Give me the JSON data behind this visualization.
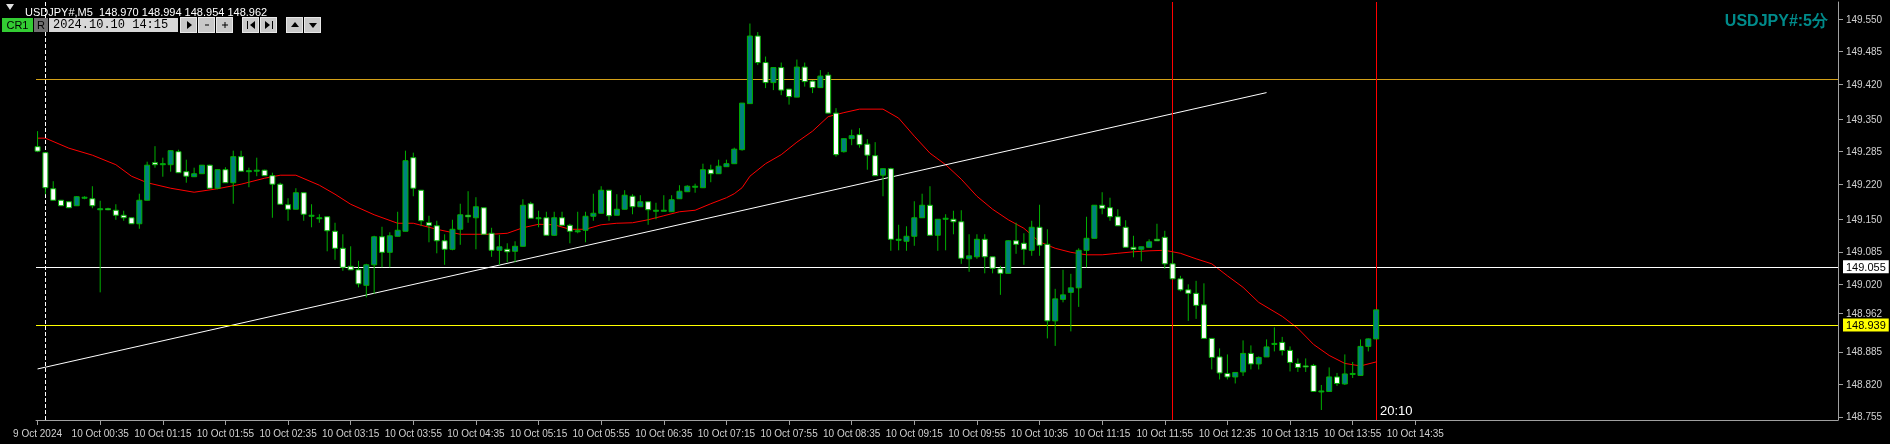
{
  "chart_data": {
    "type": "candlestick",
    "title": "USDJPY#,M5  148.970 148.994 148.954 148.962",
    "annotations": [
      "USDJPY#:5分",
      "20:10",
      "CR1",
      "R",
      "2024.10.10 14:15"
    ],
    "x": [
      "2024-10-09T23:55",
      "2024-10-10T00:00",
      "2024-10-10T00:05",
      "2024-10-10T00:10",
      "2024-10-10T00:15",
      "2024-10-10T00:20",
      "2024-10-10T00:25",
      "2024-10-10T00:30",
      "2024-10-10T00:35",
      "2024-10-10T00:40",
      "2024-10-10T00:45",
      "2024-10-10T00:50",
      "2024-10-10T00:55",
      "2024-10-10T01:00",
      "2024-10-10T01:05",
      "2024-10-10T01:10",
      "2024-10-10T01:15",
      "2024-10-10T01:20",
      "2024-10-10T01:25",
      "2024-10-10T01:30",
      "2024-10-10T01:35",
      "2024-10-10T01:40",
      "2024-10-10T01:45",
      "2024-10-10T01:50",
      "2024-10-10T01:55",
      "2024-10-10T02:00",
      "2024-10-10T02:05",
      "2024-10-10T02:10",
      "2024-10-10T02:15",
      "2024-10-10T02:20",
      "2024-10-10T02:25",
      "2024-10-10T02:30",
      "2024-10-10T02:35",
      "2024-10-10T02:40",
      "2024-10-10T02:45",
      "2024-10-10T02:50",
      "2024-10-10T02:55",
      "2024-10-10T03:00",
      "2024-10-10T03:05",
      "2024-10-10T03:10",
      "2024-10-10T03:15",
      "2024-10-10T03:20",
      "2024-10-10T03:25",
      "2024-10-10T03:30",
      "2024-10-10T03:35",
      "2024-10-10T03:40",
      "2024-10-10T03:45",
      "2024-10-10T03:50",
      "2024-10-10T03:55",
      "2024-10-10T04:00",
      "2024-10-10T04:05",
      "2024-10-10T04:10",
      "2024-10-10T04:15",
      "2024-10-10T04:20",
      "2024-10-10T04:25",
      "2024-10-10T04:30",
      "2024-10-10T04:35",
      "2024-10-10T04:40",
      "2024-10-10T04:45",
      "2024-10-10T04:50",
      "2024-10-10T04:55",
      "2024-10-10T05:00",
      "2024-10-10T05:05",
      "2024-10-10T05:10",
      "2024-10-10T05:15",
      "2024-10-10T05:20",
      "2024-10-10T05:25",
      "2024-10-10T05:30",
      "2024-10-10T05:35",
      "2024-10-10T05:40",
      "2024-10-10T05:45",
      "2024-10-10T05:50",
      "2024-10-10T05:55",
      "2024-10-10T06:00",
      "2024-10-10T06:05",
      "2024-10-10T06:10",
      "2024-10-10T06:15",
      "2024-10-10T06:20",
      "2024-10-10T06:25",
      "2024-10-10T06:30",
      "2024-10-10T06:35",
      "2024-10-10T06:40",
      "2024-10-10T06:45",
      "2024-10-10T06:50",
      "2024-10-10T06:55",
      "2024-10-10T07:00",
      "2024-10-10T07:05",
      "2024-10-10T07:10",
      "2024-10-10T07:15",
      "2024-10-10T07:20",
      "2024-10-10T07:25",
      "2024-10-10T07:30",
      "2024-10-10T07:35",
      "2024-10-10T07:40",
      "2024-10-10T07:45",
      "2024-10-10T07:50",
      "2024-10-10T07:55",
      "2024-10-10T08:00",
      "2024-10-10T08:05",
      "2024-10-10T08:10",
      "2024-10-10T08:15",
      "2024-10-10T08:20",
      "2024-10-10T08:25",
      "2024-10-10T08:30",
      "2024-10-10T08:35",
      "2024-10-10T08:40",
      "2024-10-10T08:45",
      "2024-10-10T08:50",
      "2024-10-10T08:55",
      "2024-10-10T09:00",
      "2024-10-10T09:05",
      "2024-10-10T09:10",
      "2024-10-10T09:15",
      "2024-10-10T09:20",
      "2024-10-10T09:25",
      "2024-10-10T09:30",
      "2024-10-10T09:35",
      "2024-10-10T09:40",
      "2024-10-10T09:45",
      "2024-10-10T09:50",
      "2024-10-10T09:55",
      "2024-10-10T10:00",
      "2024-10-10T10:05",
      "2024-10-10T10:10",
      "2024-10-10T10:15",
      "2024-10-10T10:20",
      "2024-10-10T10:25",
      "2024-10-10T10:30",
      "2024-10-10T10:35",
      "2024-10-10T10:40",
      "2024-10-10T10:45",
      "2024-10-10T10:50",
      "2024-10-10T10:55",
      "2024-10-10T11:00",
      "2024-10-10T11:05",
      "2024-10-10T11:10",
      "2024-10-10T11:15",
      "2024-10-10T11:20",
      "2024-10-10T11:25",
      "2024-10-10T11:30",
      "2024-10-10T11:35",
      "2024-10-10T11:40",
      "2024-10-10T11:45",
      "2024-10-10T11:50",
      "2024-10-10T11:55",
      "2024-10-10T12:00",
      "2024-10-10T12:05",
      "2024-10-10T12:10",
      "2024-10-10T12:15",
      "2024-10-10T12:20",
      "2024-10-10T12:25",
      "2024-10-10T12:30",
      "2024-10-10T12:35",
      "2024-10-10T12:40",
      "2024-10-10T12:45",
      "2024-10-10T12:50",
      "2024-10-10T12:55",
      "2024-10-10T13:00",
      "2024-10-10T13:05",
      "2024-10-10T13:10",
      "2024-10-10T13:15",
      "2024-10-10T13:20",
      "2024-10-10T13:25",
      "2024-10-10T13:30",
      "2024-10-10T13:35",
      "2024-10-10T13:40",
      "2024-10-10T13:45",
      "2024-10-10T13:50",
      "2024-10-10T13:55",
      "2024-10-10T14:00",
      "2024-10-10T14:05",
      "2024-10-10T14:10"
    ],
    "ohlc": [
      [
        149.295,
        149.326,
        149.284,
        149.286
      ],
      [
        149.283,
        149.283,
        149.2,
        149.213
      ],
      [
        149.211,
        149.226,
        149.188,
        149.188
      ],
      [
        149.188,
        149.188,
        149.177,
        149.177
      ],
      [
        149.185,
        149.185,
        149.173,
        149.173
      ],
      [
        149.177,
        149.196,
        149.177,
        149.195
      ],
      [
        149.192,
        149.196,
        149.19,
        149.194
      ],
      [
        149.191,
        149.216,
        149.172,
        149.177
      ],
      [
        149.171,
        149.187,
        149.004,
        149.171
      ],
      [
        149.171,
        149.173,
        149.168,
        149.17
      ],
      [
        149.168,
        149.18,
        149.149,
        149.158
      ],
      [
        149.158,
        149.167,
        149.147,
        149.153
      ],
      [
        149.153,
        149.153,
        149.141,
        149.141
      ],
      [
        149.141,
        149.201,
        149.131,
        149.188
      ],
      [
        149.188,
        149.265,
        149.188,
        149.258
      ],
      [
        149.263,
        149.296,
        149.253,
        149.259
      ],
      [
        149.26,
        149.273,
        149.235,
        149.261
      ],
      [
        149.259,
        149.287,
        149.245,
        149.287
      ],
      [
        149.285,
        149.289,
        149.243,
        149.243
      ],
      [
        149.245,
        149.269,
        149.223,
        149.236
      ],
      [
        149.235,
        149.253,
        149.235,
        149.241
      ],
      [
        149.241,
        149.258,
        149.241,
        149.258
      ],
      [
        149.258,
        149.259,
        149.212,
        149.212
      ],
      [
        149.212,
        149.249,
        149.21,
        149.249
      ],
      [
        149.249,
        149.254,
        149.223,
        149.223
      ],
      [
        149.223,
        149.287,
        149.181,
        149.275
      ],
      [
        149.275,
        149.287,
        149.246,
        149.246
      ],
      [
        149.246,
        149.253,
        149.214,
        149.247
      ],
      [
        149.248,
        149.273,
        149.236,
        149.248
      ],
      [
        149.248,
        149.249,
        149.237,
        149.237
      ],
      [
        149.237,
        149.243,
        149.153,
        149.22
      ],
      [
        149.22,
        149.223,
        149.18,
        149.18
      ],
      [
        149.179,
        149.192,
        149.147,
        149.17
      ],
      [
        149.17,
        149.212,
        149.17,
        149.203
      ],
      [
        149.203,
        149.203,
        149.147,
        149.16
      ],
      [
        149.158,
        149.18,
        149.134,
        149.158
      ],
      [
        149.153,
        149.16,
        149.143,
        149.153
      ],
      [
        149.155,
        149.155,
        149.086,
        149.127
      ],
      [
        149.126,
        149.143,
        149.069,
        149.092
      ],
      [
        149.092,
        149.12,
        149.047,
        149.054
      ],
      [
        149.056,
        149.096,
        149.049,
        149.049
      ],
      [
        149.049,
        149.067,
        149.014,
        149.021
      ],
      [
        149.018,
        149.061,
        148.994,
        149.059
      ],
      [
        149.059,
        149.117,
        149.001,
        149.115
      ],
      [
        149.115,
        149.135,
        149.054,
        149.084
      ],
      [
        149.084,
        149.124,
        149.054,
        149.117
      ],
      [
        149.116,
        149.165,
        149.116,
        149.128
      ],
      [
        149.126,
        149.287,
        149.126,
        149.267
      ],
      [
        149.273,
        149.283,
        149.196,
        149.212
      ],
      [
        149.208,
        149.208,
        149.137,
        149.147
      ],
      [
        149.143,
        149.157,
        149.104,
        149.138
      ],
      [
        149.137,
        149.147,
        149.082,
        149.107
      ],
      [
        149.107,
        149.12,
        149.059,
        149.09
      ],
      [
        149.09,
        149.149,
        149.088,
        149.13
      ],
      [
        149.13,
        149.181,
        149.099,
        149.159
      ],
      [
        149.158,
        149.206,
        149.143,
        149.155
      ],
      [
        149.153,
        149.194,
        149.09,
        149.175
      ],
      [
        149.173,
        149.173,
        149.12,
        149.12
      ],
      [
        149.122,
        149.133,
        149.075,
        149.088
      ],
      [
        149.088,
        149.119,
        149.059,
        149.095
      ],
      [
        149.09,
        149.102,
        149.064,
        149.085
      ],
      [
        149.086,
        149.106,
        149.064,
        149.096
      ],
      [
        149.096,
        149.19,
        149.096,
        149.178
      ],
      [
        149.181,
        149.185,
        149.152,
        149.152
      ],
      [
        149.153,
        149.167,
        149.134,
        149.153
      ],
      [
        149.153,
        149.165,
        149.118,
        149.118
      ],
      [
        149.118,
        149.165,
        149.117,
        149.153
      ],
      [
        149.153,
        149.165,
        149.138,
        149.138
      ],
      [
        149.138,
        149.141,
        149.102,
        149.126
      ],
      [
        149.127,
        149.165,
        149.122,
        149.127
      ],
      [
        149.128,
        149.165,
        149.104,
        149.156
      ],
      [
        149.156,
        149.201,
        149.147,
        149.162
      ],
      [
        149.162,
        149.216,
        149.162,
        149.208
      ],
      [
        149.208,
        149.208,
        149.147,
        149.157
      ],
      [
        149.158,
        149.2,
        149.158,
        149.17
      ],
      [
        149.17,
        149.208,
        149.17,
        149.198
      ],
      [
        149.196,
        149.2,
        149.16,
        149.175
      ],
      [
        149.175,
        149.198,
        149.175,
        149.185
      ],
      [
        149.185,
        149.185,
        149.139,
        149.169
      ],
      [
        149.168,
        149.183,
        149.15,
        149.168
      ],
      [
        149.168,
        149.198,
        149.166,
        149.168
      ],
      [
        149.165,
        149.198,
        149.165,
        149.189
      ],
      [
        149.191,
        149.218,
        149.191,
        149.206
      ],
      [
        149.205,
        149.218,
        149.205,
        149.216
      ],
      [
        149.216,
        149.221,
        149.203,
        149.216
      ],
      [
        149.213,
        149.261,
        149.213,
        149.249
      ],
      [
        149.249,
        149.259,
        149.224,
        149.241
      ],
      [
        149.241,
        149.269,
        149.241,
        149.256
      ],
      [
        149.255,
        149.269,
        149.255,
        149.261
      ],
      [
        149.261,
        149.293,
        149.261,
        149.29
      ],
      [
        149.289,
        149.382,
        149.287,
        149.382
      ],
      [
        149.381,
        149.541,
        149.381,
        149.516
      ],
      [
        149.516,
        149.524,
        149.458,
        149.463
      ],
      [
        149.463,
        149.475,
        149.412,
        149.423
      ],
      [
        149.423,
        149.453,
        149.408,
        149.453
      ],
      [
        149.453,
        149.463,
        149.398,
        149.408
      ],
      [
        149.41,
        149.41,
        149.379,
        149.395
      ],
      [
        149.394,
        149.469,
        149.394,
        149.454
      ],
      [
        149.454,
        149.463,
        149.415,
        149.425
      ],
      [
        149.426,
        149.428,
        149.402,
        149.413
      ],
      [
        149.413,
        149.448,
        149.413,
        149.436
      ],
      [
        149.438,
        149.444,
        149.362,
        149.362
      ],
      [
        149.362,
        149.372,
        149.275,
        149.279
      ],
      [
        149.285,
        149.311,
        149.283,
        149.311
      ],
      [
        149.311,
        149.329,
        149.298,
        149.317
      ],
      [
        149.319,
        149.332,
        149.293,
        149.299
      ],
      [
        149.3,
        149.31,
        149.249,
        149.278
      ],
      [
        149.277,
        149.304,
        149.237,
        149.237
      ],
      [
        149.238,
        149.251,
        149.196,
        149.251
      ],
      [
        149.251,
        149.253,
        149.087,
        149.11
      ],
      [
        149.11,
        149.139,
        149.088,
        149.11
      ],
      [
        149.106,
        149.136,
        149.087,
        149.116
      ],
      [
        149.116,
        149.186,
        149.097,
        149.153
      ],
      [
        149.153,
        149.201,
        149.153,
        149.178
      ],
      [
        149.178,
        149.216,
        149.118,
        149.118
      ],
      [
        149.118,
        149.15,
        149.087,
        149.15
      ],
      [
        149.152,
        149.16,
        149.088,
        149.152
      ],
      [
        149.15,
        149.167,
        149.12,
        149.145
      ],
      [
        149.145,
        149.168,
        149.061,
        149.072
      ],
      [
        149.071,
        149.12,
        149.045,
        149.077
      ],
      [
        149.075,
        149.12,
        149.071,
        149.11
      ],
      [
        149.11,
        149.12,
        149.042,
        149.075
      ],
      [
        149.075,
        149.075,
        149.042,
        149.052
      ],
      [
        149.051,
        149.057,
        148.999,
        149.042
      ],
      [
        149.042,
        149.108,
        149.042,
        149.107
      ],
      [
        149.107,
        149.143,
        149.081,
        149.1
      ],
      [
        149.102,
        149.122,
        149.059,
        149.09
      ],
      [
        149.088,
        149.147,
        149.077,
        149.134
      ],
      [
        149.134,
        149.179,
        149.077,
        149.098
      ],
      [
        149.1,
        149.13,
        148.912,
        148.947
      ],
      [
        148.947,
        149.011,
        148.897,
        148.991
      ],
      [
        148.99,
        149.049,
        148.984,
        148.999
      ],
      [
        149.004,
        149.041,
        148.926,
        149.013
      ],
      [
        149.013,
        149.092,
        148.975,
        149.088
      ],
      [
        149.088,
        149.155,
        149.054,
        149.112
      ],
      [
        149.112,
        149.178,
        149.112,
        149.178
      ],
      [
        149.178,
        149.204,
        149.16,
        149.172
      ],
      [
        149.173,
        149.193,
        149.147,
        149.155
      ],
      [
        149.155,
        149.17,
        149.137,
        149.137
      ],
      [
        149.134,
        149.148,
        149.094,
        149.094
      ],
      [
        149.094,
        149.117,
        149.074,
        149.09
      ],
      [
        149.09,
        149.095,
        149.066,
        149.095
      ],
      [
        149.094,
        149.11,
        149.094,
        149.105
      ],
      [
        149.11,
        149.141,
        149.107,
        149.107
      ],
      [
        149.114,
        149.127,
        149.051,
        149.061
      ],
      [
        149.061,
        149.084,
        149.031,
        149.031
      ],
      [
        149.031,
        149.037,
        149.006,
        149.009
      ],
      [
        149.009,
        149.02,
        148.947,
        149.002
      ],
      [
        149.002,
        149.027,
        148.951,
        148.978
      ],
      [
        148.979,
        149.022,
        148.912,
        148.912
      ],
      [
        148.912,
        148.912,
        148.85,
        148.874
      ],
      [
        148.875,
        148.892,
        148.83,
        148.843
      ],
      [
        148.842,
        148.88,
        148.83,
        148.835
      ],
      [
        148.835,
        148.844,
        148.822,
        148.844
      ],
      [
        148.845,
        148.908,
        148.837,
        148.882
      ],
      [
        148.882,
        148.898,
        148.85,
        148.861
      ],
      [
        148.861,
        148.876,
        148.85,
        148.874
      ],
      [
        148.875,
        148.91,
        148.875,
        148.895
      ],
      [
        148.901,
        148.934,
        148.886,
        148.902
      ],
      [
        148.904,
        148.915,
        148.878,
        148.888
      ],
      [
        148.888,
        148.896,
        148.846,
        148.864
      ],
      [
        148.862,
        148.872,
        148.845,
        148.854
      ],
      [
        148.857,
        148.872,
        148.845,
        148.856
      ],
      [
        148.858,
        148.861,
        148.806,
        148.806
      ],
      [
        148.806,
        148.819,
        148.769,
        148.807
      ],
      [
        148.806,
        148.854,
        148.806,
        148.835
      ],
      [
        148.835,
        148.843,
        148.817,
        148.822
      ],
      [
        148.821,
        148.88,
        148.819,
        148.841
      ],
      [
        148.842,
        148.865,
        148.833,
        148.842
      ],
      [
        148.838,
        148.91,
        148.838,
        148.896
      ],
      [
        148.896,
        148.912,
        148.886,
        148.911
      ],
      [
        148.911,
        148.969,
        148.911,
        148.969
      ]
    ],
    "colors": [
      "#ffffff",
      "#ffffff",
      "#ffffff",
      "#ffffff",
      "#ffffff",
      "#008080",
      "#008080",
      "#ffffff",
      "#008080",
      "#ffffff",
      "#ffffff",
      "#ffffff",
      "#ffffff",
      "#008080",
      "#008080",
      "#ffffff",
      "#008080",
      "#008080",
      "#ffffff",
      "#ffffff",
      "#008080",
      "#008080",
      "#ffffff",
      "#008080",
      "#ffffff",
      "#008080",
      "#ffffff",
      "#008080",
      "#008080",
      "#ffffff",
      "#ffffff",
      "#ffffff",
      "#ffffff",
      "#008080",
      "#ffffff",
      "#008080",
      "#008080",
      "#ffffff",
      "#ffffff",
      "#ffffff",
      "#ffffff",
      "#ffffff",
      "#008080",
      "#008080",
      "#ffffff",
      "#008080",
      "#008080",
      "#008080",
      "#ffffff",
      "#ffffff",
      "#ffffff",
      "#ffffff",
      "#ffffff",
      "#008080",
      "#008080",
      "#ffffff",
      "#008080",
      "#ffffff",
      "#ffffff",
      "#008080",
      "#ffffff",
      "#008080",
      "#008080",
      "#ffffff",
      "#008080",
      "#ffffff",
      "#008080",
      "#ffffff",
      "#ffffff",
      "#008080",
      "#008080",
      "#008080",
      "#008080",
      "#ffffff",
      "#008080",
      "#008080",
      "#ffffff",
      "#008080",
      "#ffffff",
      "#008080",
      "#008080",
      "#008080",
      "#008080",
      "#008080",
      "#008080",
      "#008080",
      "#ffffff",
      "#008080",
      "#008080",
      "#008080",
      "#008080",
      "#008080",
      "#ffffff",
      "#ffffff",
      "#008080",
      "#ffffff",
      "#ffffff",
      "#008080",
      "#ffffff",
      "#ffffff",
      "#008080",
      "#ffffff",
      "#ffffff",
      "#008080",
      "#008080",
      "#ffffff",
      "#ffffff",
      "#ffffff",
      "#008080",
      "#ffffff",
      "#008080",
      "#008080",
      "#008080",
      "#008080",
      "#ffffff",
      "#008080",
      "#008080",
      "#ffffff",
      "#ffffff",
      "#008080",
      "#008080",
      "#ffffff",
      "#ffffff",
      "#ffffff",
      "#008080",
      "#ffffff",
      "#ffffff",
      "#008080",
      "#ffffff",
      "#ffffff",
      "#008080",
      "#008080",
      "#008080",
      "#008080",
      "#008080",
      "#008080",
      "#ffffff",
      "#ffffff",
      "#ffffff",
      "#ffffff",
      "#ffffff",
      "#008080",
      "#008080",
      "#ffffff",
      "#ffffff",
      "#ffffff",
      "#ffffff",
      "#ffffff",
      "#ffffff",
      "#ffffff",
      "#ffffff",
      "#ffffff",
      "#ffffff",
      "#008080",
      "#008080",
      "#ffffff",
      "#008080",
      "#008080",
      "#008080",
      "#ffffff",
      "#ffffff",
      "#ffffff",
      "#ffffff",
      "#ffffff",
      "#008080",
      "#008080",
      "#ffffff",
      "#008080",
      "#008080",
      "#008080",
      "#008080",
      "#008080"
    ],
    "series": [
      {
        "type": "line",
        "color": "#ff0000",
        "x": [
          "2024-10-09T23:55",
          "2024-10-10T00:00",
          "2024-10-10T00:15",
          "2024-10-10T00:30",
          "2024-10-10T00:45",
          "2024-10-10T00:55",
          "2024-10-10T01:05",
          "2024-10-10T01:20",
          "2024-10-10T01:35",
          "2024-10-10T01:50",
          "2024-10-10T02:05",
          "2024-10-10T02:20",
          "2024-10-10T02:30",
          "2024-10-10T02:40",
          "2024-10-10T02:55",
          "2024-10-10T03:05",
          "2024-10-10T03:15",
          "2024-10-10T03:30",
          "2024-10-10T03:45",
          "2024-10-10T03:55",
          "2024-10-10T04:10",
          "2024-10-10T04:25",
          "2024-10-10T04:45",
          "2024-10-10T04:55",
          "2024-10-10T05:05",
          "2024-10-10T05:15",
          "2024-10-10T05:25",
          "2024-10-10T05:35",
          "2024-10-10T05:45",
          "2024-10-10T05:55",
          "2024-10-10T06:05",
          "2024-10-10T06:15",
          "2024-10-10T06:25",
          "2024-10-10T06:35",
          "2024-10-10T06:45",
          "2024-10-10T06:55",
          "2024-10-10T07:05",
          "2024-10-10T07:15",
          "2024-10-10T07:20",
          "2024-10-10T07:25",
          "2024-10-10T07:30",
          "2024-10-10T07:40",
          "2024-10-10T07:50",
          "2024-10-10T08:00",
          "2024-10-10T08:10",
          "2024-10-10T08:20",
          "2024-10-10T08:30",
          "2024-10-10T08:40",
          "2024-10-10T08:55",
          "2024-10-10T09:05",
          "2024-10-10T09:15",
          "2024-10-10T09:25",
          "2024-10-10T09:35",
          "2024-10-10T09:45",
          "2024-10-10T09:55",
          "2024-10-10T10:05",
          "2024-10-10T10:15",
          "2024-10-10T10:25",
          "2024-10-10T10:35",
          "2024-10-10T10:45",
          "2024-10-10T10:55",
          "2024-10-10T11:05",
          "2024-10-10T11:15",
          "2024-10-10T11:25",
          "2024-10-10T11:35",
          "2024-10-10T11:45",
          "2024-10-10T11:55",
          "2024-10-10T12:05",
          "2024-10-10T12:15",
          "2024-10-10T12:25",
          "2024-10-10T12:35",
          "2024-10-10T12:45",
          "2024-10-10T12:55",
          "2024-10-10T13:10",
          "2024-10-10T13:20",
          "2024-10-10T13:30",
          "2024-10-10T13:40",
          "2024-10-10T13:50",
          "2024-10-10T14:00",
          "2024-10-10T14:10"
        ],
        "values": [
          149.312,
          149.312,
          149.292,
          149.278,
          149.259,
          149.236,
          149.223,
          149.212,
          149.204,
          149.211,
          149.22,
          149.232,
          149.238,
          149.238,
          149.218,
          149.2,
          149.18,
          149.159,
          149.142,
          149.142,
          149.13,
          149.12,
          149.12,
          149.122,
          149.133,
          149.14,
          149.139,
          149.13,
          149.13,
          149.139,
          149.142,
          149.143,
          149.149,
          149.157,
          149.165,
          149.168,
          149.181,
          149.193,
          149.201,
          149.213,
          149.236,
          149.261,
          149.279,
          149.304,
          149.326,
          149.355,
          149.363,
          149.37,
          149.37,
          149.352,
          149.316,
          149.282,
          149.259,
          149.23,
          149.196,
          149.17,
          149.149,
          149.132,
          149.105,
          149.092,
          149.084,
          149.079,
          149.079,
          149.082,
          149.085,
          149.087,
          149.088,
          149.082,
          149.071,
          149.061,
          149.037,
          149.014,
          148.984,
          148.956,
          148.932,
          148.9,
          148.878,
          148.862,
          148.857,
          148.865
        ]
      },
      {
        "type": "line",
        "color": "#ffffff",
        "x": [
          "2024-10-09T23:55",
          "2024-10-10T13:00"
        ],
        "values": [
          148.851,
          149.403
        ]
      }
    ],
    "ref_lines": [
      {
        "axis": "y",
        "value": 149.43,
        "color": "#d4a017"
      },
      {
        "axis": "y",
        "value": 149.055,
        "label": "149.055",
        "color": "#ffffff"
      },
      {
        "axis": "y",
        "value": 148.939,
        "label": "148.939",
        "color": "#ffff00"
      },
      {
        "axis": "x",
        "value": "2024-10-10T00:00",
        "color": "#ffffff",
        "line_style": "dashed"
      },
      {
        "axis": "x",
        "value": "2024-10-10T12:00",
        "color": "#ff0000"
      },
      {
        "axis": "x",
        "value": "2024-10-10T14:10",
        "color": "#ff0000"
      }
    ],
    "xlim": [
      "2024-10-09T23:54",
      "2024-10-10T19:05"
    ],
    "xticks": [
      {
        "value": "2024-10-09T23:55",
        "label": "9 Oct 2024"
      },
      {
        "value": "2024-10-10T00:35",
        "label": "10 Oct 00:35"
      },
      {
        "value": "2024-10-10T01:15",
        "label": "10 Oct 01:15"
      },
      {
        "value": "2024-10-10T01:55",
        "label": "10 Oct 01:55"
      },
      {
        "value": "2024-10-10T02:35",
        "label": "10 Oct 02:35"
      },
      {
        "value": "2024-10-10T03:15",
        "label": "10 Oct 03:15"
      },
      {
        "value": "2024-10-10T03:55",
        "label": "10 Oct 03:55"
      },
      {
        "value": "2024-10-10T04:35",
        "label": "10 Oct 04:35"
      },
      {
        "value": "2024-10-10T05:15",
        "label": "10 Oct 05:15"
      },
      {
        "value": "2024-10-10T05:55",
        "label": "10 Oct 05:55"
      },
      {
        "value": "2024-10-10T06:35",
        "label": "10 Oct 06:35"
      },
      {
        "value": "2024-10-10T07:15",
        "label": "10 Oct 07:15"
      },
      {
        "value": "2024-10-10T07:55",
        "label": "10 Oct 07:55"
      },
      {
        "value": "2024-10-10T08:35",
        "label": "10 Oct 08:35"
      },
      {
        "value": "2024-10-10T09:15",
        "label": "10 Oct 09:15"
      },
      {
        "value": "2024-10-10T09:55",
        "label": "10 Oct 09:55"
      },
      {
        "value": "2024-10-10T10:35",
        "label": "10 Oct 10:35"
      },
      {
        "value": "2024-10-10T11:15",
        "label": "10 Oct 11:15"
      },
      {
        "value": "2024-10-10T11:55",
        "label": "10 Oct 11:55"
      },
      {
        "value": "2024-10-10T12:35",
        "label": "10 Oct 12:35"
      },
      {
        "value": "2024-10-10T13:15",
        "label": "10 Oct 13:15"
      },
      {
        "value": "2024-10-10T13:55",
        "label": "10 Oct 13:55"
      },
      {
        "value": "2024-10-10T14:35",
        "label": "10 Oct 14:35"
      }
    ],
    "ylim": [
      148.749,
      149.584
    ],
    "yticks": [
      148.755,
      {
        "value": 148.82,
        "label": "148.820"
      },
      148.885,
      148.962,
      {
        "value": 149.02,
        "label": "149.020"
      },
      149.085,
      {
        "value": 149.15,
        "label": "149.150"
      },
      {
        "value": 149.22,
        "label": "149.220"
      },
      149.285,
      {
        "value": 149.35,
        "label": "149.350"
      },
      {
        "value": 149.42,
        "label": "149.420"
      },
      149.485,
      {
        "value": 149.55,
        "label": "149.550"
      }
    ]
  }
}
